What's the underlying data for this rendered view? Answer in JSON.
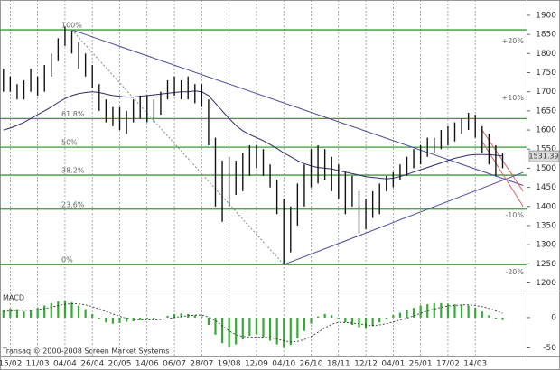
{
  "chart_data": [
    {
      "type": "hilo",
      "categories": [
        null,
        "15/02",
        null,
        null,
        null,
        "11/03",
        null,
        null,
        null,
        "04/04",
        null,
        null,
        null,
        "26/04",
        null,
        null,
        null,
        "20/05",
        null,
        null,
        null,
        "14/06",
        null,
        null,
        null,
        "06/07",
        null,
        null,
        null,
        "28/07",
        null,
        null,
        null,
        "19/08",
        null,
        null,
        null,
        "12/09",
        null,
        null,
        null,
        "04/10",
        null,
        null,
        null,
        "26/10",
        null,
        null,
        null,
        "18/11",
        null,
        null,
        null,
        "12/12",
        null,
        null,
        null,
        "04/01",
        null,
        null,
        null,
        "26/01",
        null,
        null,
        null,
        "17/02",
        null,
        null,
        null,
        "14/03",
        null,
        null,
        null,
        null,
        null,
        null,
        null
      ],
      "high": [
        1760,
        1740,
        1720,
        1730,
        1760,
        1740,
        1770,
        1800,
        1840,
        1870,
        1860,
        1830,
        1800,
        1770,
        1720,
        1680,
        1660,
        1660,
        1650,
        1680,
        1690,
        1690,
        1680,
        1700,
        1730,
        1740,
        1730,
        1740,
        1720,
        1720,
        1680,
        1580,
        1520,
        1530,
        1520,
        1540,
        1560,
        1560,
        1550,
        1510,
        1470,
        1420,
        1400,
        1460,
        1510,
        1550,
        1560,
        1550,
        1530,
        1510,
        1490,
        1480,
        1440,
        1420,
        1440,
        1460,
        1480,
        1490,
        1510,
        1530,
        1550,
        1560,
        1580,
        1580,
        1600,
        1610,
        1620,
        1630,
        1645,
        1640,
        1610,
        1590,
        1560,
        1540,
        null,
        null,
        null
      ],
      "low": [
        1700,
        1700,
        1680,
        1680,
        1700,
        1690,
        1700,
        1740,
        1780,
        1820,
        1800,
        1760,
        1740,
        1710,
        1650,
        1620,
        1610,
        1600,
        1590,
        1620,
        1630,
        1620,
        1620,
        1640,
        1680,
        1690,
        1680,
        1680,
        1670,
        1660,
        1560,
        1400,
        1360,
        1400,
        1430,
        1440,
        1480,
        1500,
        1480,
        1450,
        1380,
        1248,
        1280,
        1350,
        1400,
        1450,
        1460,
        1470,
        1440,
        1420,
        1380,
        1400,
        1330,
        1340,
        1370,
        1380,
        1440,
        1450,
        1470,
        1480,
        1500,
        1510,
        1530,
        1540,
        1550,
        1560,
        1570,
        1590,
        1600,
        1580,
        1540,
        1510,
        1480,
        1500,
        null,
        null,
        null
      ],
      "ma": [
        1600,
        1605,
        1612,
        1620,
        1630,
        1640,
        1650,
        1660,
        1672,
        1682,
        1690,
        1695,
        1698,
        1700,
        1698,
        1694,
        1690,
        1688,
        1686,
        1686,
        1688,
        1690,
        1692,
        1694,
        1696,
        1698,
        1700,
        1700,
        1702,
        1700,
        1690,
        1670,
        1650,
        1630,
        1612,
        1598,
        1588,
        1580,
        1572,
        1562,
        1552,
        1540,
        1530,
        1520,
        1512,
        1506,
        1502,
        1500,
        1498,
        1494,
        1490,
        1486,
        1482,
        1478,
        1476,
        1474,
        1472,
        1474,
        1478,
        1484,
        1490,
        1496,
        1502,
        1508,
        1514,
        1520,
        1526,
        1530,
        1534,
        1536,
        1536,
        1536,
        1534,
        1532,
        null,
        null,
        null
      ],
      "color": "#111111",
      "ma_color": "#2c2c6e",
      "ylim": [
        1180,
        1940
      ],
      "yticks": [
        1200,
        1250,
        1300,
        1350,
        1400,
        1450,
        1500,
        1550,
        1600,
        1650,
        1700,
        1750,
        1800,
        1850,
        1900
      ],
      "fib_levels": [
        {
          "label": "100%",
          "value": 1862
        },
        {
          "label": "61.8%",
          "value": 1630
        },
        {
          "label": "50%",
          "value": 1555
        },
        {
          "label": "38.2%",
          "value": 1482
        },
        {
          "label": "23.6%",
          "value": 1393
        },
        {
          "label": "0%",
          "value": 1248
        }
      ],
      "fib_color": "#3a9a3a",
      "side_labels": [
        {
          "label": "+20%",
          "value": 1833
        },
        {
          "label": "+10%",
          "value": 1684
        },
        {
          "label": "-10%",
          "value": 1377
        },
        {
          "label": "-20%",
          "value": 1228
        }
      ],
      "trend_lines": [
        {
          "points": [
            [
              10,
              1862
            ],
            [
              76,
              1455
            ]
          ],
          "color": "#4a4a9a",
          "dashed": false
        },
        {
          "points": [
            [
              41,
              1248
            ],
            [
              76,
              1489
            ]
          ],
          "color": "#4a4a9a",
          "dashed": false
        },
        {
          "points": [
            [
              10,
              1862
            ],
            [
              41,
              1248
            ]
          ],
          "color": "#888888",
          "dashed": true
        },
        {
          "points": [
            [
              70,
              1600
            ],
            [
              76,
              1440
            ]
          ],
          "color": "#e06060",
          "dashed": false
        },
        {
          "points": [
            [
              70,
              1570
            ],
            [
              76,
              1400
            ]
          ],
          "color": "#e06060",
          "dashed": false
        }
      ],
      "last_price": 1531.39
    },
    {
      "type": "macd",
      "title": "MACD",
      "values": [
        12,
        15,
        14,
        10,
        12,
        16,
        20,
        24,
        27,
        28,
        25,
        20,
        14,
        6,
        -2,
        -8,
        -10,
        -9,
        -7,
        -6,
        -4,
        -3,
        -2,
        0,
        3,
        6,
        7,
        6,
        4,
        2,
        -12,
        -28,
        -42,
        -48,
        -44,
        -36,
        -30,
        -28,
        -32,
        -38,
        -44,
        -50,
        -45,
        -34,
        -22,
        -10,
        2,
        6,
        4,
        -2,
        -8,
        -12,
        -16,
        -18,
        -14,
        -8,
        -2,
        4,
        8,
        12,
        16,
        20,
        22,
        24,
        24,
        23,
        22,
        21,
        20,
        16,
        10,
        4,
        -2,
        -4,
        null,
        null,
        null
      ],
      "signal": [
        10,
        11,
        12,
        12,
        12,
        13,
        15,
        17,
        20,
        22,
        23,
        23,
        21,
        18,
        14,
        10,
        6,
        2,
        -1,
        -3,
        -4,
        -4,
        -4,
        -3,
        -2,
        0,
        2,
        3,
        4,
        4,
        1,
        -5,
        -13,
        -22,
        -28,
        -31,
        -32,
        -32,
        -32,
        -33,
        -35,
        -38,
        -40,
        -39,
        -36,
        -31,
        -24,
        -17,
        -11,
        -8,
        -8,
        -9,
        -10,
        -12,
        -13,
        -12,
        -10,
        -7,
        -4,
        -1,
        3,
        7,
        11,
        14,
        17,
        19,
        20,
        21,
        21,
        20,
        18,
        15,
        11,
        7,
        null,
        null,
        null
      ],
      "color": "#33aa33",
      "ylim": [
        -64,
        43
      ],
      "yticks": [
        0,
        -50
      ]
    }
  ],
  "footer": "Transaq © 2000-2008 Screen Market Systems"
}
